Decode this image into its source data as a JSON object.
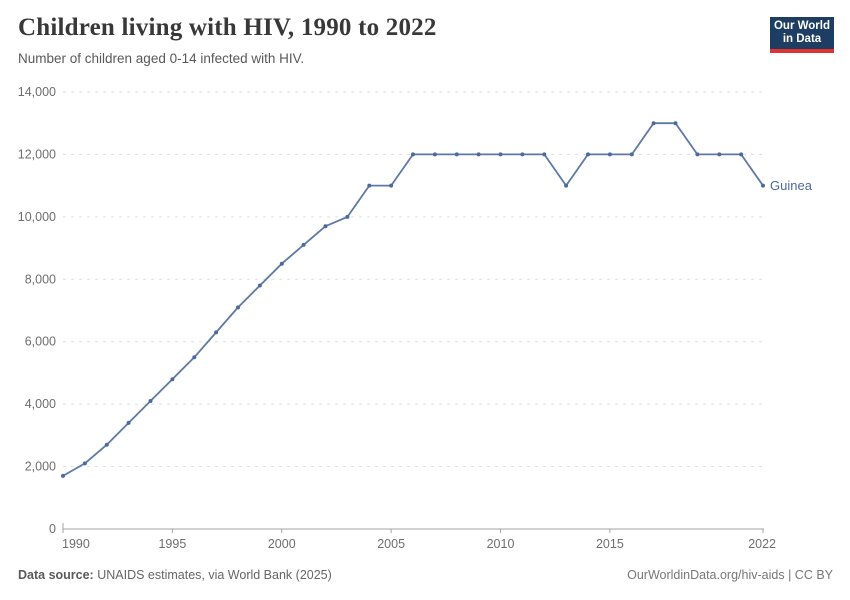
{
  "header": {
    "title": "Children living with HIV, 1990 to 2022",
    "subtitle": "Number of children aged 0-14 infected with HIV.",
    "logo": {
      "line1": "Our World",
      "line2": "in Data"
    }
  },
  "chart_data": {
    "type": "line",
    "title": "Children living with HIV, 1990 to 2022",
    "subtitle": "Number of children aged 0-14 infected with HIV.",
    "xlabel": "",
    "ylabel": "",
    "xlim": [
      1990,
      2022
    ],
    "ylim": [
      0,
      14000
    ],
    "x_ticks": [
      1990,
      1995,
      2000,
      2005,
      2010,
      2015,
      2022
    ],
    "y_ticks": [
      0,
      2000,
      4000,
      6000,
      8000,
      10000,
      12000,
      14000
    ],
    "grid": "horizontal-dashed",
    "legend_position": "end-of-line-label",
    "series": [
      {
        "name": "Guinea",
        "color": "#4c6a9c",
        "x": [
          1990,
          1991,
          1992,
          1993,
          1994,
          1995,
          1996,
          1997,
          1998,
          1999,
          2000,
          2001,
          2002,
          2003,
          2004,
          2005,
          2006,
          2007,
          2008,
          2009,
          2010,
          2011,
          2012,
          2013,
          2014,
          2015,
          2016,
          2017,
          2018,
          2019,
          2020,
          2021,
          2022
        ],
        "values": [
          1700,
          2100,
          2700,
          3400,
          4100,
          4800,
          5500,
          6300,
          7100,
          7800,
          8500,
          9100,
          9700,
          10000,
          11000,
          11000,
          12000,
          12000,
          12000,
          12000,
          12000,
          12000,
          12000,
          11000,
          12000,
          12000,
          12000,
          13000,
          13000,
          12000,
          12000,
          12000,
          11000
        ]
      }
    ]
  },
  "colors": {
    "series_blue": "#4c6a9c",
    "gridline": "#dddddd",
    "axis": "#a5a5a5",
    "tick_label": "#6e6e6e",
    "logo_navy": "#1d3d63",
    "logo_red": "#e0322e"
  },
  "footer": {
    "source_label": "Data source:",
    "source_text": " UNAIDS estimates, via World Bank (2025)",
    "credit": "OurWorldinData.org/hiv-aids | CC BY"
  }
}
